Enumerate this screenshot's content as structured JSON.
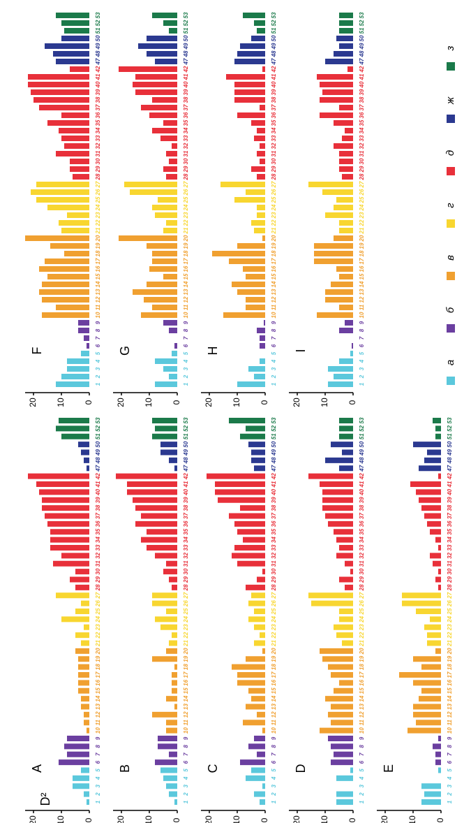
{
  "chart_data": {
    "type": "bar",
    "ylabel": "D²",
    "ylim": [
      0,
      23
    ],
    "yticks": [
      0,
      10,
      20
    ],
    "categories": [
      "1",
      "2",
      "3",
      "4",
      "5",
      "6",
      "7",
      "8",
      "9",
      "10",
      "11",
      "12",
      "13",
      "14",
      "15",
      "16",
      "17",
      "18",
      "19",
      "20",
      "21",
      "22",
      "23",
      "24",
      "25",
      "26",
      "27",
      "28",
      "29",
      "30",
      "31",
      "32",
      "33",
      "34",
      "35",
      "36",
      "37",
      "38",
      "39",
      "40",
      "41",
      "42",
      "47",
      "48",
      "49",
      "50",
      "51",
      "52",
      "53"
    ],
    "colors": [
      "#5bc8dc",
      "#5bc8dc",
      "#5bc8dc",
      "#5bc8dc",
      "#5bc8dc",
      "#6b3fa0",
      "#6b3fa0",
      "#6b3fa0",
      "#6b3fa0",
      "#f0a030",
      "#f0a030",
      "#f0a030",
      "#f0a030",
      "#f0a030",
      "#f0a030",
      "#f0a030",
      "#f0a030",
      "#f0a030",
      "#f0a030",
      "#f0a030",
      "#f8d630",
      "#f8d630",
      "#f8d630",
      "#f8d630",
      "#f8d630",
      "#f8d630",
      "#f8d630",
      "#e8303a",
      "#e8303a",
      "#e8303a",
      "#e8303a",
      "#e8303a",
      "#e8303a",
      "#e8303a",
      "#e8303a",
      "#e8303a",
      "#e8303a",
      "#e8303a",
      "#e8303a",
      "#e8303a",
      "#e8303a",
      "#e8303a",
      "#2b3990",
      "#2b3990",
      "#2b3990",
      "#2b3990",
      "#1b7a4a",
      "#1b7a4a",
      "#1b7a4a"
    ],
    "legend": [
      {
        "name": "а",
        "color": "#5bc8dc"
      },
      {
        "name": "б",
        "color": "#6b3fa0"
      },
      {
        "name": "в",
        "color": "#f0a030"
      },
      {
        "name": "г",
        "color": "#f8d630"
      },
      {
        "name": "д",
        "color": "#e8303a"
      },
      {
        "name": "ж",
        "color": "#2b3990"
      },
      {
        "name": "з",
        "color": "#1b7a4a"
      }
    ],
    "panels": [
      {
        "title": "A",
        "values": [
          1,
          2,
          6,
          6,
          3,
          11,
          8,
          9,
          8,
          1,
          2,
          2,
          3,
          3,
          4,
          4,
          4,
          4,
          4,
          5,
          3,
          5,
          2,
          10,
          5,
          3,
          12,
          5,
          7,
          5,
          13,
          10,
          14,
          14,
          14,
          15,
          16,
          17,
          17,
          18,
          19,
          22,
          1,
          2,
          3,
          4,
          10,
          12,
          11
        ]
      },
      {
        "title": "B",
        "values": [
          1,
          3,
          4,
          5,
          6,
          8,
          3,
          7,
          7,
          4,
          4,
          9,
          1,
          4,
          2,
          2,
          2,
          1,
          9,
          4,
          3,
          2,
          6,
          8,
          4,
          9,
          9,
          2,
          3,
          5,
          4,
          8,
          11,
          13,
          11,
          15,
          13,
          15,
          16,
          18,
          18,
          22,
          1,
          3,
          6,
          6,
          9,
          8,
          9
        ]
      },
      {
        "title": "C",
        "values": [
          2,
          4,
          1,
          7,
          5,
          9,
          3,
          6,
          4,
          1,
          8,
          3,
          7,
          5,
          6,
          10,
          10,
          12,
          7,
          1,
          4,
          2,
          4,
          6,
          4,
          6,
          5,
          7,
          3,
          1,
          10,
          12,
          11,
          8,
          10,
          11,
          13,
          9,
          17,
          18,
          18,
          21,
          4,
          5,
          5,
          6,
          9,
          7,
          13
        ]
      },
      {
        "title": "D",
        "values": [
          6,
          6,
          0,
          6,
          1,
          8,
          7,
          8,
          9,
          12,
          8,
          9,
          8,
          10,
          7,
          5,
          8,
          9,
          11,
          12,
          4,
          6,
          7,
          5,
          5,
          15,
          16,
          3,
          5,
          1,
          3,
          6,
          5,
          6,
          7,
          9,
          10,
          11,
          11,
          11,
          12,
          16,
          5,
          10,
          4,
          8,
          5,
          5,
          5
        ]
      },
      {
        "title": "E",
        "values": [
          7,
          6,
          7,
          0,
          1,
          2,
          2,
          3,
          1,
          12,
          9,
          10,
          10,
          8,
          7,
          10,
          15,
          7,
          10,
          2,
          5,
          5,
          6,
          4,
          9,
          14,
          14,
          1,
          2,
          1,
          3,
          4,
          1,
          2,
          4,
          5,
          6,
          7,
          8,
          9,
          11,
          1,
          8,
          6,
          5,
          10,
          2,
          2,
          3
        ]
      },
      {
        "title": "F",
        "values": [
          12,
          10,
          8,
          8,
          3,
          1,
          2,
          4,
          4,
          17,
          12,
          17,
          18,
          17,
          15,
          18,
          16,
          9,
          14,
          23,
          10,
          11,
          8,
          15,
          19,
          21,
          19,
          6,
          7,
          7,
          12,
          9,
          10,
          11,
          15,
          10,
          18,
          20,
          21,
          22,
          22,
          7,
          12,
          13,
          16,
          10,
          9,
          10,
          12
        ]
      },
      {
        "title": "G",
        "values": [
          8,
          3,
          5,
          8,
          2,
          1,
          0,
          3,
          5,
          13,
          9,
          12,
          16,
          11,
          5,
          10,
          9,
          9,
          11,
          21,
          5,
          4,
          8,
          9,
          7,
          17,
          19,
          4,
          5,
          3,
          4,
          2,
          6,
          9,
          5,
          10,
          13,
          9,
          15,
          16,
          15,
          21,
          8,
          11,
          14,
          11,
          3,
          5,
          9
        ]
      },
      {
        "title": "H",
        "values": [
          10,
          4,
          6,
          2,
          0,
          2,
          2,
          3,
          0.5,
          15,
          7,
          7,
          10,
          12,
          7,
          8,
          13,
          19,
          10,
          1,
          4,
          5,
          3,
          3,
          11,
          7,
          16,
          3,
          5,
          2,
          3,
          2,
          4,
          3,
          5,
          10,
          2,
          11,
          11,
          11,
          14,
          1,
          11,
          10,
          9,
          5,
          3,
          4,
          8
        ]
      },
      {
        "title": "I",
        "values": [
          9,
          7,
          9,
          5,
          1,
          0.5,
          0,
          5,
          3,
          13,
          5,
          10,
          10,
          8,
          5,
          6,
          14,
          14,
          14,
          7,
          5,
          5,
          10,
          7,
          6,
          11,
          16,
          4,
          5,
          5,
          5,
          7,
          4,
          3,
          7,
          12,
          5,
          12,
          11,
          12,
          13,
          2,
          10,
          7,
          5,
          6,
          5,
          5,
          5
        ]
      }
    ]
  }
}
